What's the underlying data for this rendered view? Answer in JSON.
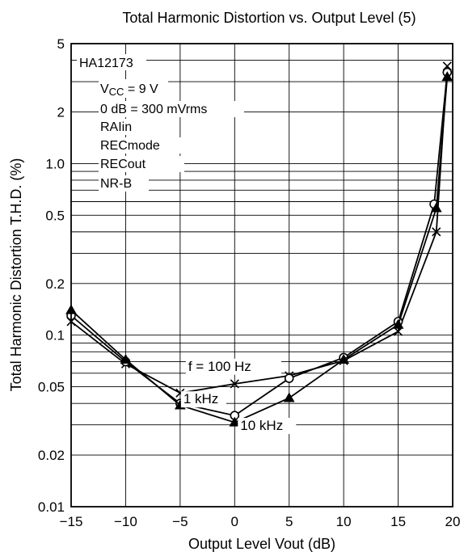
{
  "chart_data": {
    "type": "line",
    "title": "Total Harmonic Distortion vs. Output Level (5)",
    "xlabel": "Output Level Vout (dB)",
    "ylabel": "Total Harmonic Distortion T.H.D. (%)",
    "xlim": [
      -15,
      20
    ],
    "ylim": [
      0.01,
      5
    ],
    "yscale": "log",
    "grid": true,
    "x_ticks": [
      -15,
      -10,
      -5,
      0,
      5,
      10,
      15,
      20
    ],
    "x_tick_labels": [
      "−15",
      "−10",
      "−5",
      "0",
      "5",
      "10",
      "15",
      "20"
    ],
    "y_ticks": [
      0.01,
      0.02,
      0.05,
      0.1,
      0.2,
      0.5,
      1.0,
      2,
      5
    ],
    "y_tick_labels": [
      "0.01",
      "0.02",
      "0.05",
      "0.1",
      "0.2",
      "0.5",
      "1.0",
      "2",
      "5"
    ],
    "conditions": {
      "device": "HA12173",
      "vcc_prefix": "V",
      "vcc_sub": "CC",
      "vcc_value": " = 9 V",
      "ref_level": "0 dB = 300 mVrms",
      "input": "RAIin",
      "mode": "RECmode",
      "output": "RECout",
      "nr": "NR-B"
    },
    "series": [
      {
        "name": "f = 100 Hz",
        "marker": "cross",
        "x": [
          -15,
          -10,
          -5,
          0,
          5,
          10,
          15,
          18.5,
          19.5
        ],
        "values": [
          0.12,
          0.068,
          0.046,
          0.052,
          0.058,
          0.071,
          0.105,
          0.4,
          3.7
        ]
      },
      {
        "name": "1 kHz",
        "marker": "circle",
        "x": [
          -15,
          -10,
          -5,
          0,
          5,
          10,
          15,
          18.3,
          19.5
        ],
        "values": [
          0.13,
          0.07,
          0.04,
          0.034,
          0.056,
          0.074,
          0.12,
          0.58,
          3.4
        ]
      },
      {
        "name": "10 kHz",
        "marker": "triangle",
        "x": [
          -15,
          -10,
          -5,
          0,
          5,
          10,
          15,
          18.5,
          19.5
        ],
        "values": [
          0.14,
          0.072,
          0.039,
          0.031,
          0.043,
          0.072,
          0.115,
          0.55,
          3.2
        ]
      }
    ]
  }
}
